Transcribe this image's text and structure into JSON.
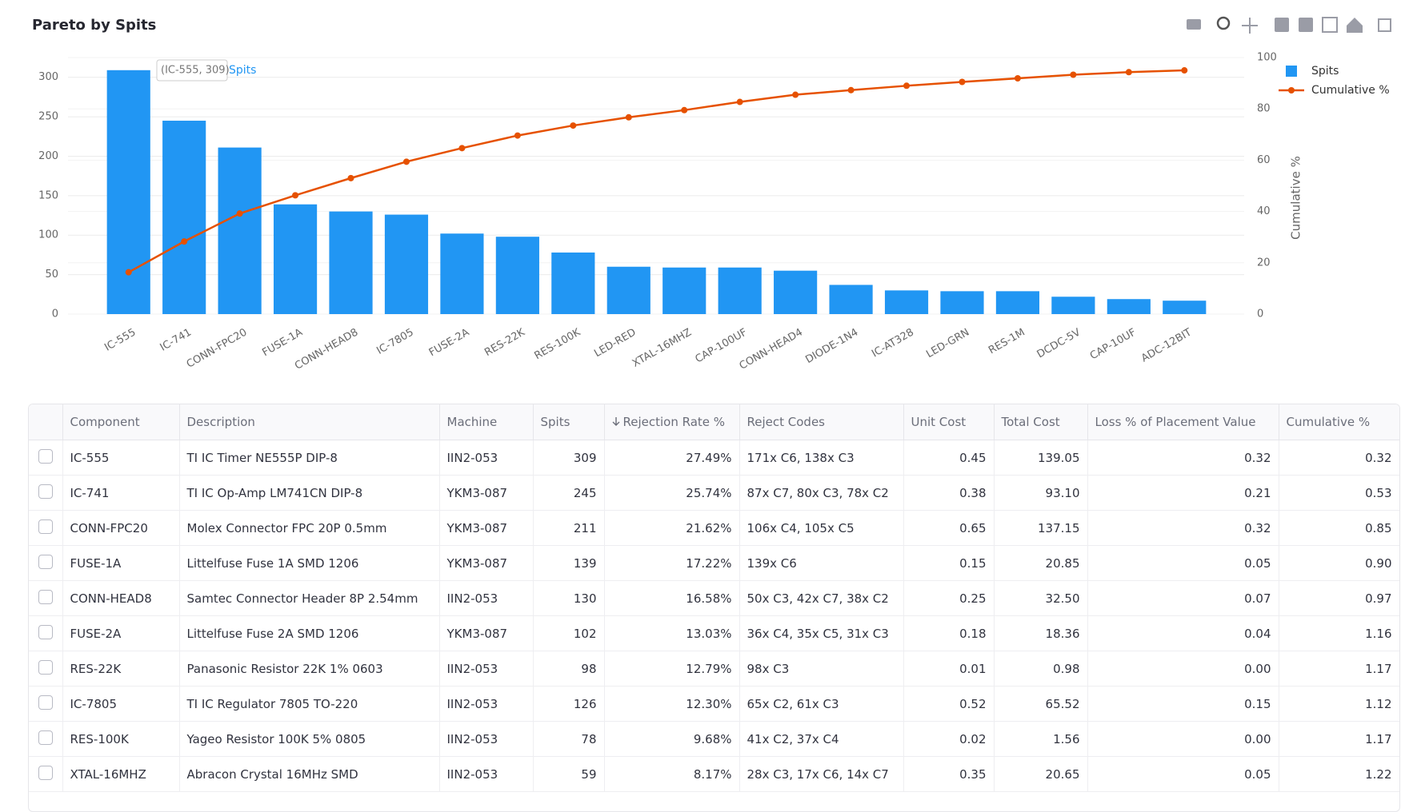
{
  "chart_data": {
    "type": "bar_line",
    "title": "Pareto by Spits",
    "categories": [
      "IC-555",
      "IC-741",
      "CONN-FPC20",
      "FUSE-1A",
      "CONN-HEAD8",
      "IC-7805",
      "FUSE-2A",
      "RES-22K",
      "RES-100K",
      "LED-RED",
      "XTAL-16MHZ",
      "CAP-100UF",
      "CONN-HEAD4",
      "DIODE-1N4",
      "IC-AT328",
      "LED-GRN",
      "RES-1M",
      "DCDC-5V",
      "CAP-10UF",
      "ADC-12BIT"
    ],
    "series": [
      {
        "name": "Spits",
        "type": "bar",
        "color": "#2196f3",
        "values": [
          309,
          245,
          211,
          139,
          130,
          126,
          102,
          98,
          78,
          60,
          59,
          59,
          55,
          37,
          30,
          29,
          29,
          22,
          19,
          17
        ]
      },
      {
        "name": "Cumulative %",
        "type": "line",
        "axis": "y2",
        "color": "#e65100",
        "values": [
          16.3,
          28.3,
          39.2,
          46.3,
          53,
          59.4,
          64.7,
          69.6,
          73.5,
          76.7,
          79.5,
          82.7,
          85.5,
          87.3,
          89,
          90.5,
          91.9,
          93.3,
          94.3,
          95
        ]
      }
    ],
    "ylim": [
      0,
      325
    ],
    "yticks": [
      0,
      50,
      100,
      150,
      200,
      250,
      300
    ],
    "y2lim": [
      0,
      100
    ],
    "y2ticks": [
      0,
      20,
      40,
      60,
      80,
      100
    ],
    "y2label": "Cumulative %",
    "hover_label": "(IC-555, 309)",
    "grid": true,
    "legend": "top-right"
  },
  "table": {
    "columns": [
      "Component",
      "Description",
      "Machine",
      "Spits",
      "Rejection Rate %",
      "Reject Codes",
      "Unit Cost",
      "Total Cost",
      "Loss % of Placement Value",
      "Cumulative %"
    ],
    "rows": [
      [
        "IC-555",
        "TI IC Timer NE555P DIP-8",
        "IIN2-053",
        309,
        "27.49%",
        "171x C6, 138x C3",
        "0.45",
        "139.05",
        "0.32",
        "0.32"
      ],
      [
        "IC-741",
        "TI IC Op-Amp LM741CN DIP-8",
        "YKM3-087",
        245,
        "25.74%",
        "87x C7, 80x C3, 78x C2",
        "0.38",
        "93.10",
        "0.21",
        "0.53"
      ],
      [
        "CONN-FPC20",
        "Molex Connector FPC 20P 0.5mm",
        "YKM3-087",
        211,
        "21.62%",
        "106x C4, 105x C5",
        "0.65",
        "137.15",
        "0.32",
        "0.85"
      ],
      [
        "FUSE-1A",
        "Littelfuse Fuse 1A SMD 1206",
        "YKM3-087",
        139,
        "17.22%",
        "139x C6",
        "0.15",
        "20.85",
        "0.05",
        "0.90"
      ],
      [
        "CONN-HEAD8",
        "Samtec Connector Header 8P 2.54mm",
        "IIN2-053",
        130,
        "16.58%",
        "50x C3, 42x C7, 38x C2",
        "0.25",
        "32.50",
        "0.07",
        "0.97"
      ],
      [
        "FUSE-2A",
        "Littelfuse Fuse 2A SMD 1206",
        "YKM3-087",
        102,
        "13.03%",
        "36x C4, 35x C5, 31x C3",
        "0.18",
        "18.36",
        "0.04",
        "1.16"
      ],
      [
        "RES-22K",
        "Panasonic Resistor 22K 1% 0603",
        "IIN2-053",
        98,
        "12.79%",
        "98x C3",
        "0.01",
        "0.98",
        "0.00",
        "1.17"
      ],
      [
        "IC-7805",
        "TI IC Regulator 7805 TO-220",
        "IIN2-053",
        126,
        "12.30%",
        "65x C2, 61x C3",
        "0.52",
        "65.52",
        "0.15",
        "1.12"
      ],
      [
        "RES-100K",
        "Yageo Resistor 100K 5% 0805",
        "IIN2-053",
        78,
        "9.68%",
        "41x C2, 37x C4",
        "0.02",
        "1.56",
        "0.00",
        "1.17"
      ],
      [
        "XTAL-16MHZ",
        "Abracon Crystal 16MHz SMD",
        "IIN2-053",
        59,
        "8.17%",
        "28x C3, 17x C6, 14x C7",
        "0.35",
        "20.65",
        "0.05",
        "1.22"
      ]
    ]
  }
}
